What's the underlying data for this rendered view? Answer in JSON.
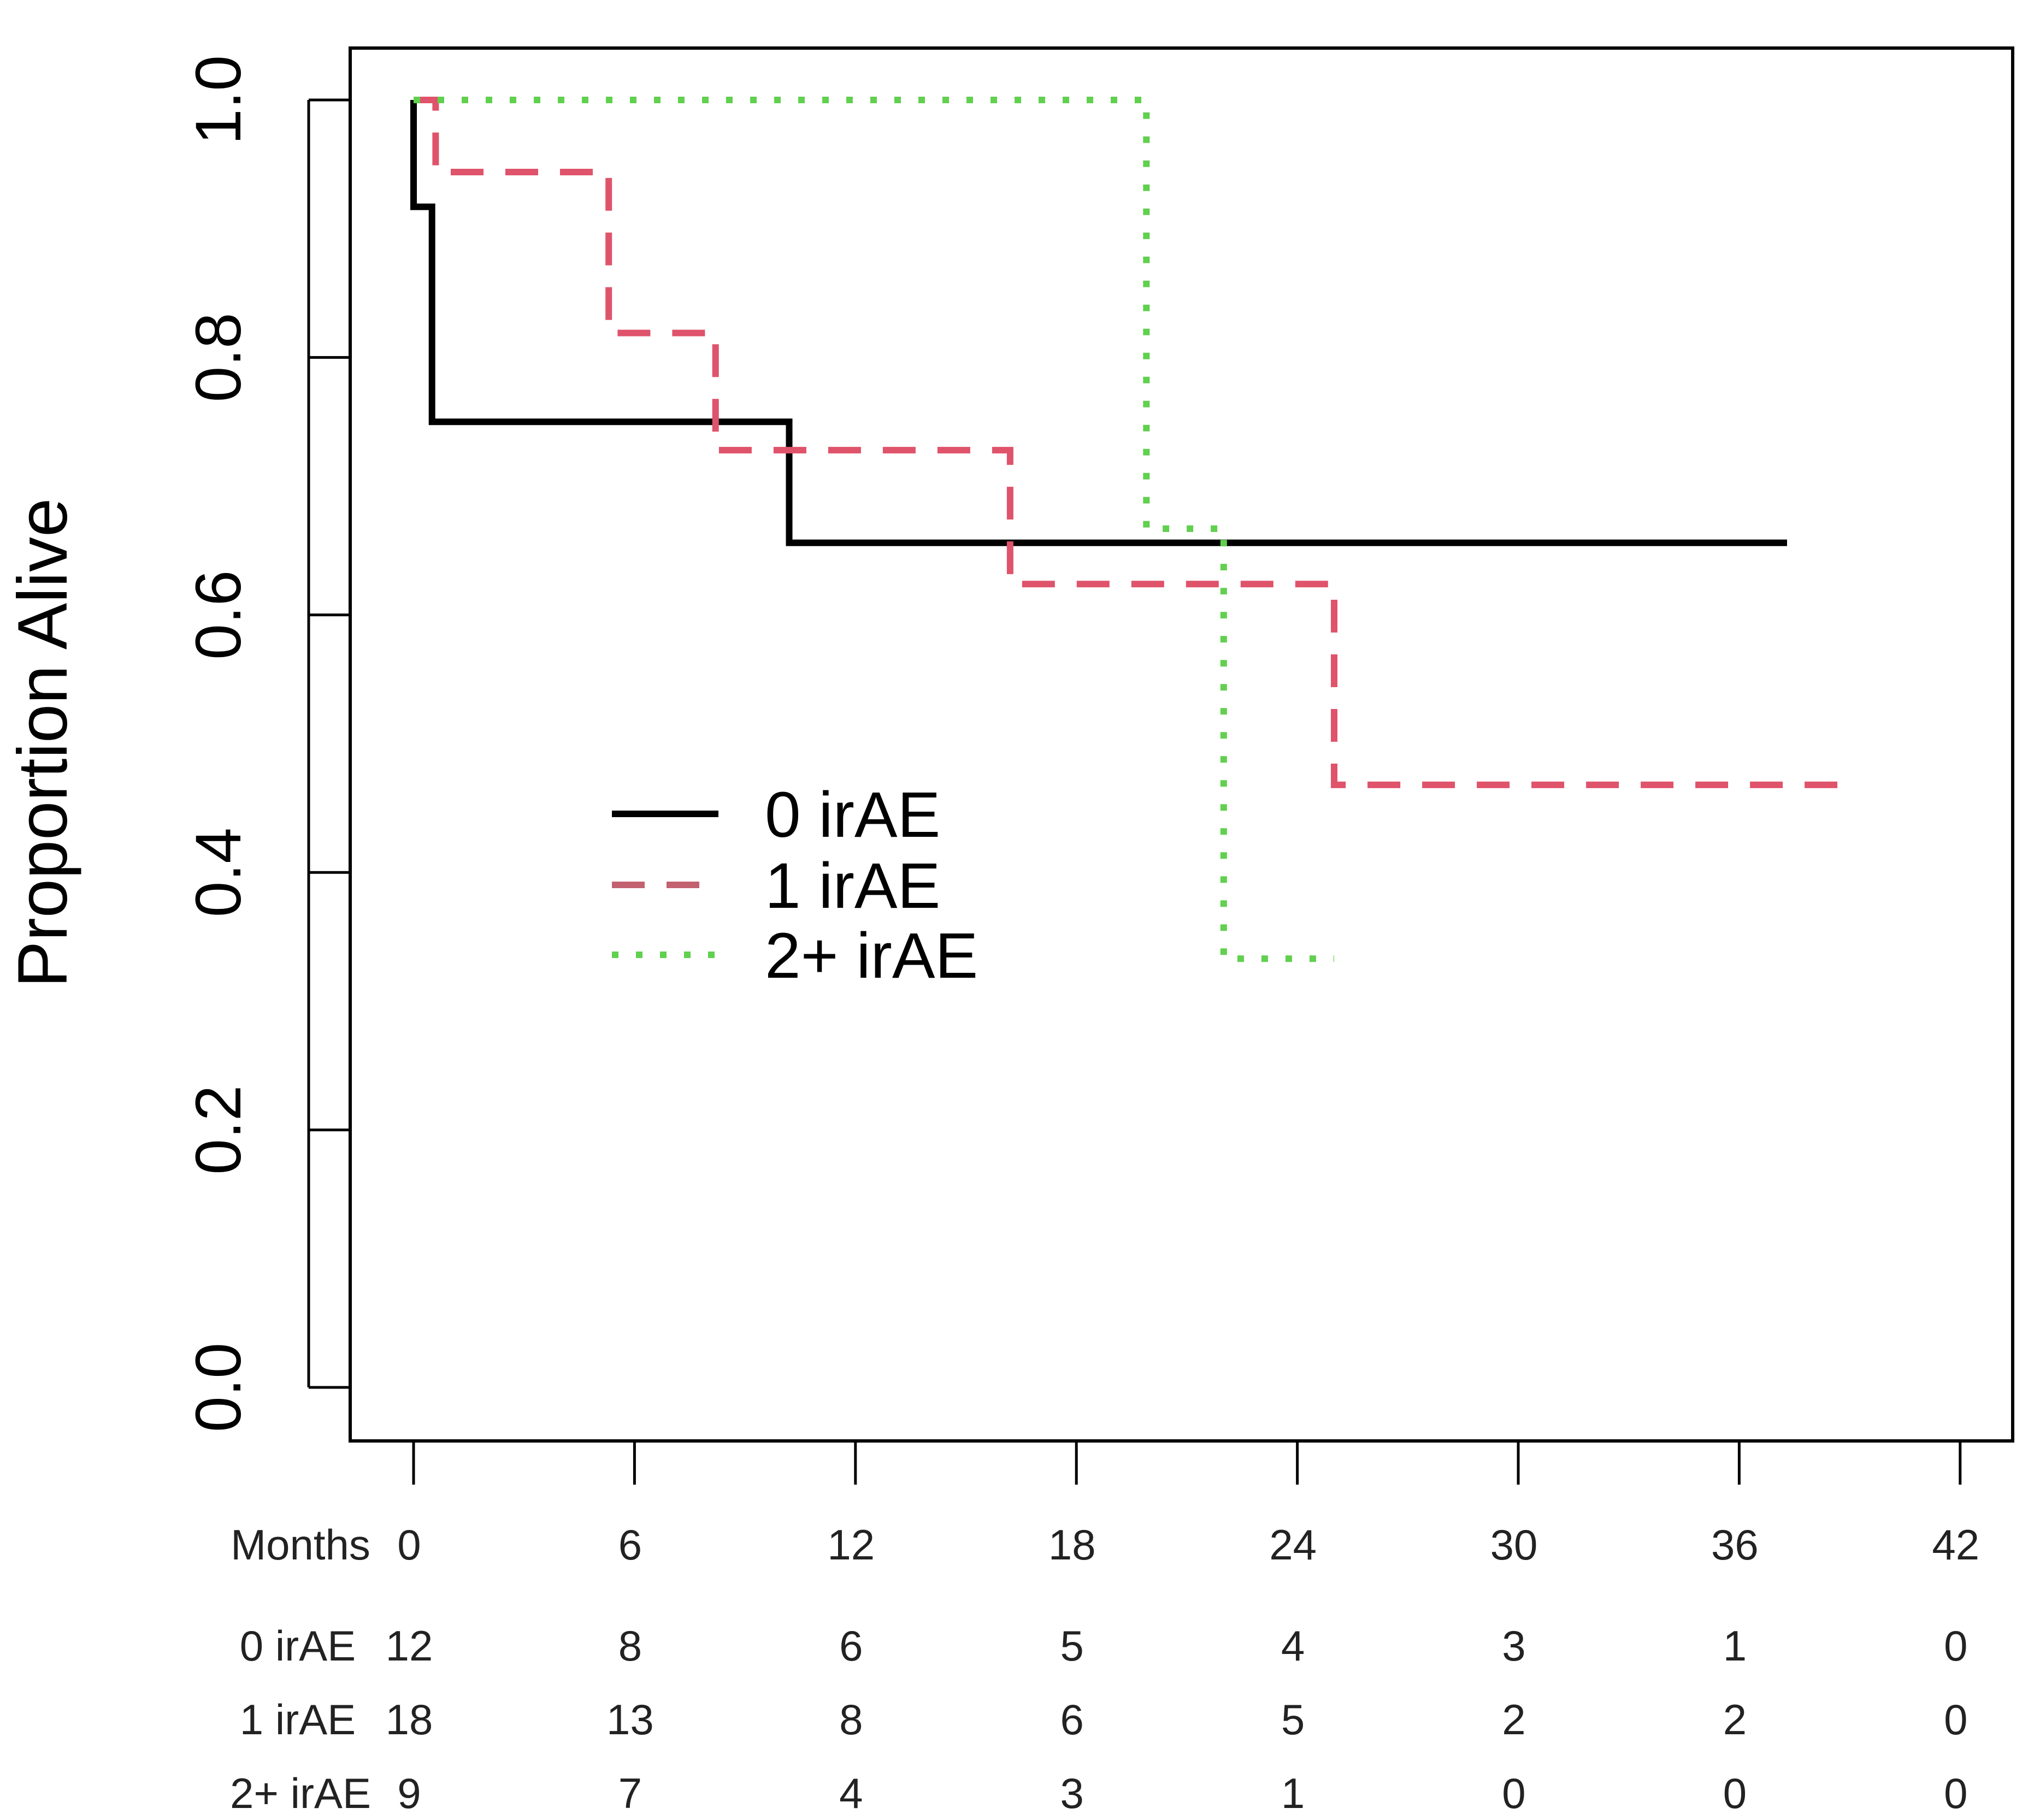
{
  "chart_data": {
    "type": "line",
    "subtype": "kaplan-meier survival curve",
    "xlabel": "Months",
    "ylabel": "Proportion Alive",
    "xlim": [
      -1.7,
      43.3
    ],
    "ylim": [
      -0.04,
      1.04
    ],
    "x_ticks": [
      0,
      6,
      12,
      18,
      24,
      30,
      36,
      42
    ],
    "x_tick_labels": [
      "0",
      "6",
      "12",
      "18",
      "24",
      "30",
      "36",
      "42"
    ],
    "y_ticks": [
      0.0,
      0.2,
      0.4,
      0.6,
      0.8,
      1.0
    ],
    "y_tick_labels": [
      "0.0",
      "0.2",
      "0.4",
      "0.6",
      "0.8",
      "1.0"
    ],
    "legend_position": "center-left",
    "series": [
      {
        "name": "0 irAE",
        "color": "#000000",
        "line_style": "solid",
        "steps": [
          [
            0,
            1.0
          ],
          [
            0.0,
            0.917
          ],
          [
            0.5,
            0.917
          ],
          [
            0.5,
            0.75
          ],
          [
            10.2,
            0.75
          ],
          [
            10.2,
            0.656
          ],
          [
            37.3,
            0.656
          ]
        ]
      },
      {
        "name": "1 irAE",
        "color": "#DF536B",
        "line_style": "dashed",
        "steps": [
          [
            0,
            1.0
          ],
          [
            0.6,
            1.0
          ],
          [
            0.6,
            0.944
          ],
          [
            5.3,
            0.944
          ],
          [
            5.3,
            0.819
          ],
          [
            8.2,
            0.819
          ],
          [
            8.2,
            0.728
          ],
          [
            16.2,
            0.728
          ],
          [
            16.2,
            0.624
          ],
          [
            25.0,
            0.624
          ],
          [
            25.0,
            0.468
          ],
          [
            38.8,
            0.468
          ]
        ]
      },
      {
        "name": "2+ irAE",
        "color": "#61D04F",
        "line_style": "dotted",
        "steps": [
          [
            0,
            1.0
          ],
          [
            19.9,
            1.0
          ],
          [
            19.9,
            0.667
          ],
          [
            22.0,
            0.667
          ],
          [
            22.0,
            0.333
          ],
          [
            25.0,
            0.333
          ]
        ]
      }
    ],
    "risk_table": {
      "header": "Months",
      "times": [
        "0",
        "6",
        "12",
        "18",
        "24",
        "30",
        "36",
        "42"
      ],
      "rows": [
        {
          "label": "0 irAE",
          "counts": [
            "12",
            "8",
            "6",
            "5",
            "4",
            "3",
            "1",
            "0"
          ]
        },
        {
          "label": "1 irAE",
          "counts": [
            "18",
            "13",
            "8",
            "6",
            "5",
            "2",
            "2",
            "0"
          ]
        },
        {
          "label": "2+ irAE",
          "counts": [
            "9",
            "7",
            "4",
            "3",
            "1",
            "0",
            "0",
            "0"
          ]
        }
      ]
    }
  }
}
